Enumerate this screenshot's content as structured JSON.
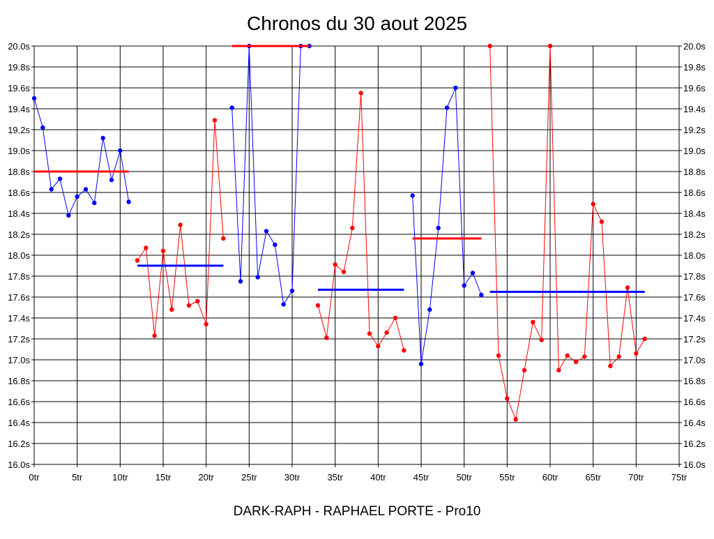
{
  "chart_data": {
    "type": "line",
    "title": "Chronos du 30 aout 2025",
    "footer": "DARK-RAPH - RAPHAEL PORTE - Pro10",
    "xlabel": "",
    "ylabel": "",
    "xlim": [
      0,
      75
    ],
    "ylim": [
      16.0,
      20.0
    ],
    "x_ticks": [
      {
        "v": 0,
        "label": "0tr"
      },
      {
        "v": 5,
        "label": "5tr"
      },
      {
        "v": 10,
        "label": "10tr"
      },
      {
        "v": 15,
        "label": "15tr"
      },
      {
        "v": 20,
        "label": "20tr"
      },
      {
        "v": 25,
        "label": "25tr"
      },
      {
        "v": 30,
        "label": "30tr"
      },
      {
        "v": 35,
        "label": "35tr"
      },
      {
        "v": 40,
        "label": "40tr"
      },
      {
        "v": 45,
        "label": "45tr"
      },
      {
        "v": 50,
        "label": "50tr"
      },
      {
        "v": 55,
        "label": "55tr"
      },
      {
        "v": 60,
        "label": "60tr"
      },
      {
        "v": 65,
        "label": "65tr"
      },
      {
        "v": 70,
        "label": "70tr"
      },
      {
        "v": 75,
        "label": "75tr"
      }
    ],
    "y_ticks": [
      {
        "v": 16.0,
        "label": "16.0s"
      },
      {
        "v": 16.2,
        "label": "16.2s"
      },
      {
        "v": 16.4,
        "label": "16.4s"
      },
      {
        "v": 16.6,
        "label": "16.6s"
      },
      {
        "v": 16.8,
        "label": "16.8s"
      },
      {
        "v": 17.0,
        "label": "17.0s"
      },
      {
        "v": 17.2,
        "label": "17.2s"
      },
      {
        "v": 17.4,
        "label": "17.4s"
      },
      {
        "v": 17.6,
        "label": "17.6s"
      },
      {
        "v": 17.8,
        "label": "17.8s"
      },
      {
        "v": 18.0,
        "label": "18.0s"
      },
      {
        "v": 18.2,
        "label": "18.2s"
      },
      {
        "v": 18.4,
        "label": "18.4s"
      },
      {
        "v": 18.6,
        "label": "18.6s"
      },
      {
        "v": 18.8,
        "label": "18.8s"
      },
      {
        "v": 19.0,
        "label": "19.0s"
      },
      {
        "v": 19.2,
        "label": "19.2s"
      },
      {
        "v": 19.4,
        "label": "19.4s"
      },
      {
        "v": 19.6,
        "label": "19.6s"
      },
      {
        "v": 19.8,
        "label": "19.8s"
      },
      {
        "v": 20.0,
        "label": "20.0s"
      }
    ],
    "grid": true,
    "series": [
      {
        "color": "#0000ff",
        "points": [
          [
            0,
            19.5
          ],
          [
            1,
            19.22
          ],
          [
            2,
            18.63
          ],
          [
            3,
            18.73
          ],
          [
            4,
            18.38
          ],
          [
            5,
            18.56
          ],
          [
            6,
            18.63
          ],
          [
            7,
            18.5
          ],
          [
            8,
            19.12
          ],
          [
            9,
            18.72
          ],
          [
            10,
            19.0
          ],
          [
            11,
            18.51
          ]
        ],
        "mean": {
          "value": 18.8,
          "x0": 0,
          "x1": 11,
          "color": "#ff0000"
        }
      },
      {
        "color": "#ff0000",
        "points": [
          [
            12,
            17.95
          ],
          [
            13,
            18.07
          ],
          [
            14,
            17.23
          ],
          [
            15,
            18.04
          ],
          [
            16,
            17.48
          ],
          [
            17,
            18.29
          ],
          [
            18,
            17.52
          ],
          [
            19,
            17.56
          ],
          [
            20,
            17.34
          ],
          [
            21,
            19.29
          ],
          [
            22,
            18.16
          ]
        ],
        "mean": {
          "value": 17.9,
          "x0": 12,
          "x1": 22,
          "color": "#0000ff"
        }
      },
      {
        "color": "#0000ff",
        "points": [
          [
            23,
            19.41
          ],
          [
            24,
            17.75
          ],
          [
            25,
            20.0
          ],
          [
            26,
            17.79
          ],
          [
            27,
            18.23
          ],
          [
            28,
            18.1
          ],
          [
            29,
            17.53
          ],
          [
            30,
            17.66
          ],
          [
            31,
            20.0
          ],
          [
            32,
            20.0
          ]
        ],
        "mean": {
          "value": 20.0,
          "x0": 23,
          "x1": 32,
          "color": "#ff0000"
        }
      },
      {
        "color": "#ff0000",
        "points": [
          [
            33,
            17.52
          ],
          [
            34,
            17.21
          ],
          [
            35,
            17.91
          ],
          [
            36,
            17.84
          ],
          [
            37,
            18.26
          ],
          [
            38,
            19.55
          ],
          [
            39,
            17.25
          ],
          [
            40,
            17.13
          ],
          [
            41,
            17.26
          ],
          [
            42,
            17.4
          ],
          [
            43,
            17.09
          ]
        ],
        "mean": {
          "value": 17.67,
          "x0": 33,
          "x1": 43,
          "color": "#0000ff"
        }
      },
      {
        "color": "#0000ff",
        "points": [
          [
            44,
            18.57
          ],
          [
            45,
            16.96
          ],
          [
            46,
            17.48
          ],
          [
            47,
            18.26
          ],
          [
            48,
            19.41
          ],
          [
            49,
            19.6
          ],
          [
            50,
            17.71
          ],
          [
            51,
            17.83
          ],
          [
            52,
            17.62
          ]
        ],
        "mean": {
          "value": 18.16,
          "x0": 44,
          "x1": 52,
          "color": "#ff0000"
        }
      },
      {
        "color": "#ff0000",
        "points": [
          [
            53,
            20.0
          ],
          [
            54,
            17.04
          ],
          [
            55,
            16.63
          ],
          [
            56,
            16.43
          ],
          [
            57,
            16.9
          ],
          [
            58,
            17.36
          ],
          [
            59,
            17.19
          ],
          [
            60,
            20.0
          ],
          [
            61,
            16.9
          ],
          [
            62,
            17.04
          ],
          [
            63,
            16.98
          ],
          [
            64,
            17.03
          ],
          [
            65,
            18.49
          ],
          [
            66,
            18.32
          ],
          [
            67,
            16.94
          ],
          [
            68,
            17.03
          ],
          [
            69,
            17.69
          ],
          [
            70,
            17.06
          ],
          [
            71,
            17.2
          ]
        ],
        "mean": {
          "value": 17.65,
          "x0": 53,
          "x1": 71,
          "color": "#0000ff"
        }
      }
    ]
  }
}
